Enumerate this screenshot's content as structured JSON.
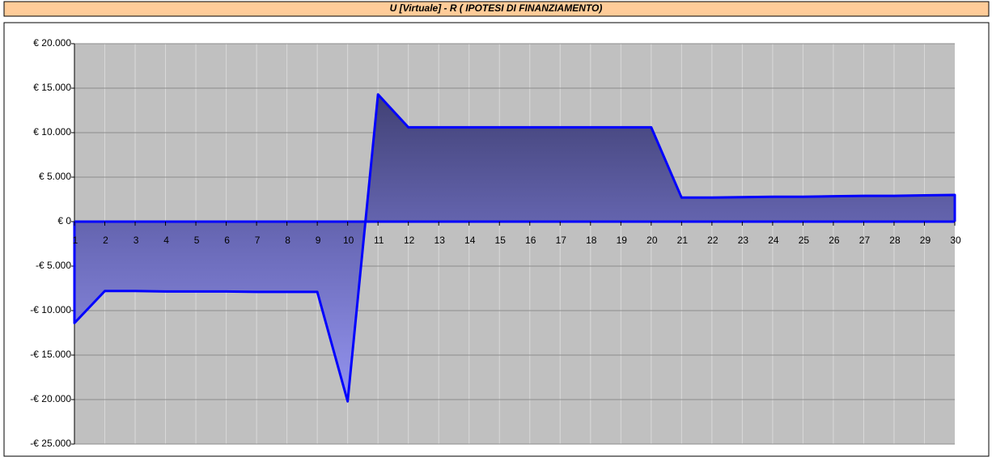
{
  "chart_data": {
    "type": "area",
    "title": "U [Virtuale] - R     ( IPOTESI DI FINANZIAMENTO)",
    "categories": [
      "1",
      "2",
      "3",
      "4",
      "5",
      "6",
      "7",
      "8",
      "9",
      "10",
      "11",
      "12",
      "13",
      "14",
      "15",
      "16",
      "17",
      "18",
      "19",
      "20",
      "21",
      "22",
      "23",
      "24",
      "25",
      "26",
      "27",
      "28",
      "29",
      "30"
    ],
    "series": [
      {
        "color": "#0000ff",
        "values": [
          -11400,
          -7800,
          -7800,
          -7850,
          -7850,
          -7850,
          -7900,
          -7900,
          -7900,
          -20200,
          14300,
          10600,
          10600,
          10600,
          10600,
          10600,
          10600,
          10600,
          10600,
          10600,
          2700,
          2700,
          2750,
          2800,
          2800,
          2850,
          2900,
          2900,
          2950,
          3000
        ]
      }
    ],
    "ylim": [
      -25000,
      20000
    ],
    "yticks": [
      {
        "value": -25000,
        "label": "-€ 25.000"
      },
      {
        "value": -20000,
        "label": "-€ 20.000"
      },
      {
        "value": -15000,
        "label": "-€ 15.000"
      },
      {
        "value": -10000,
        "label": "-€ 10.000"
      },
      {
        "value": -5000,
        "label": "-€ 5.000"
      },
      {
        "value": 0,
        "label": "€ 0"
      },
      {
        "value": 5000,
        "label": "€ 5.000"
      },
      {
        "value": 10000,
        "label": "€ 10.000"
      },
      {
        "value": 15000,
        "label": "€ 15.000"
      },
      {
        "value": 20000,
        "label": "€ 20.000"
      }
    ],
    "grid": true
  }
}
